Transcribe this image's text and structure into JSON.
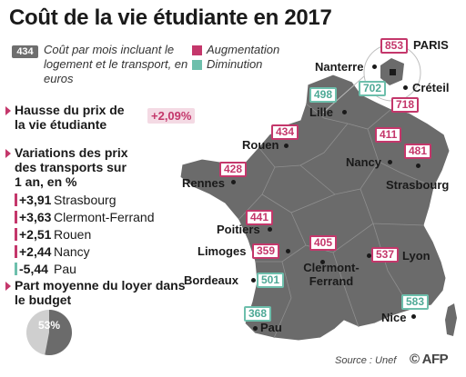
{
  "title": "Coût de la vie étudiante en 2017",
  "legend": {
    "sample_value": "434",
    "description": "Coût par mois incluant le logement et le transport, en euros",
    "increase_label": "Augmentation",
    "decrease_label": "Diminution",
    "colors": {
      "increase": "#c4376b",
      "decrease": "#6dbfac",
      "map": "#6b6b6b"
    }
  },
  "panel": {
    "rise_title": "Hausse du prix de la vie étudiante",
    "rise_value": "+2,09%",
    "transport_title": "Variations des prix des transports sur 1 an, en %",
    "transport_rows": [
      {
        "value": "+3,91",
        "city": "Strasbourg",
        "trend": "up"
      },
      {
        "value": "+3,63",
        "city": "Clermont-Ferrand",
        "trend": "up"
      },
      {
        "value": "+2,51",
        "city": "Rouen",
        "trend": "up"
      },
      {
        "value": "+2,44",
        "city": "Nancy",
        "trend": "up"
      },
      {
        "value": "-5,44",
        "city": "Pau",
        "trend": "down"
      }
    ],
    "rent_title": "Part moyenne du loyer dans le budget",
    "rent_share_label": "53%",
    "rent_share": 0.53
  },
  "cities": [
    {
      "name": "PARIS",
      "cost": "853",
      "trend": "up"
    },
    {
      "name": "Nanterre",
      "cost": "702",
      "trend": "down"
    },
    {
      "name": "Créteil",
      "cost": "718",
      "trend": "up"
    },
    {
      "name": "Lille",
      "cost": "498",
      "trend": "down"
    },
    {
      "name": "Rouen",
      "cost": "434",
      "trend": "up"
    },
    {
      "name": "Nancy",
      "cost": "411",
      "trend": "up"
    },
    {
      "name": "Strasbourg",
      "cost": "481",
      "trend": "up"
    },
    {
      "name": "Rennes",
      "cost": "428",
      "trend": "up"
    },
    {
      "name": "Poitiers",
      "cost": "441",
      "trend": "up"
    },
    {
      "name": "Limoges",
      "cost": "359",
      "trend": "up"
    },
    {
      "name": "Clermont-Ferrand",
      "cost": "405",
      "trend": "up"
    },
    {
      "name": "Lyon",
      "cost": "537",
      "trend": "up"
    },
    {
      "name": "Bordeaux",
      "cost": "501",
      "trend": "down"
    },
    {
      "name": "Pau",
      "cost": "368",
      "trend": "down"
    },
    {
      "name": "Nice",
      "cost": "583",
      "trend": "down"
    }
  ],
  "source": "Source : Unef",
  "agency": "AFP"
}
